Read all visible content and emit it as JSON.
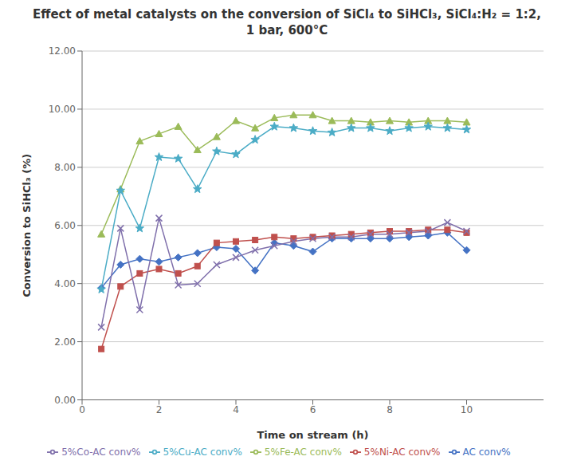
{
  "chart_data": {
    "type": "line",
    "title": "Effect of metal catalysts on the conversion of SiCl₄ to SiHCl₃, SiCl₄:H₂ = 1:2,\n1 bar, 600°C",
    "xlabel": "Time on stream (h)",
    "ylabel": "Conversion to SiHCl₃ (%)",
    "x": [
      0.5,
      1.0,
      1.5,
      2.0,
      2.5,
      3.0,
      3.5,
      4.0,
      4.5,
      5.0,
      5.5,
      6.0,
      6.5,
      7.0,
      7.5,
      8.0,
      8.5,
      9.0,
      9.5,
      10.0
    ],
    "xlim": [
      0,
      12
    ],
    "xticks": [
      0,
      2,
      4,
      6,
      8,
      10
    ],
    "ylim": [
      0,
      12
    ],
    "yticks": [
      {
        "value": 0,
        "label": "0.00"
      },
      {
        "value": 2,
        "label": "2.00"
      },
      {
        "value": 4,
        "label": "4.00"
      },
      {
        "value": 6,
        "label": "6.00"
      },
      {
        "value": 8,
        "label": "8.00"
      },
      {
        "value": 10,
        "label": "10.00"
      },
      {
        "value": 12,
        "label": "12.00"
      }
    ],
    "grid": true,
    "legend": "bottom",
    "series": [
      {
        "name": "AC conv%",
        "color": "#4472C4",
        "marker": "diamond",
        "values": [
          3.85,
          4.65,
          4.85,
          4.75,
          4.9,
          5.05,
          5.25,
          5.2,
          4.45,
          5.4,
          5.3,
          5.1,
          5.55,
          5.55,
          5.55,
          5.55,
          5.6,
          5.65,
          5.75,
          5.15
        ]
      },
      {
        "name": "5%Ni-AC conv%",
        "color": "#C0504D",
        "marker": "square",
        "values": [
          1.75,
          3.9,
          4.35,
          4.5,
          4.35,
          4.6,
          5.4,
          5.45,
          5.5,
          5.6,
          5.55,
          5.6,
          5.65,
          5.7,
          5.75,
          5.8,
          5.8,
          5.85,
          5.85,
          5.75
        ]
      },
      {
        "name": "5%Fe-AC conv%",
        "color": "#9BBB59",
        "marker": "triangle",
        "values": [
          5.7,
          7.25,
          8.9,
          9.15,
          9.4,
          8.6,
          9.05,
          9.6,
          9.35,
          9.7,
          9.8,
          9.8,
          9.6,
          9.6,
          9.55,
          9.6,
          9.55,
          9.6,
          9.6,
          9.55
        ]
      },
      {
        "name": "5%Co-AC conv%",
        "color": "#7F6FAB",
        "marker": "x",
        "values": [
          2.5,
          5.9,
          3.1,
          6.25,
          3.95,
          4.0,
          4.65,
          4.9,
          5.15,
          5.3,
          5.45,
          5.55,
          5.6,
          5.6,
          5.7,
          5.7,
          5.75,
          5.8,
          6.1,
          5.8
        ]
      },
      {
        "name": "5%Cu-AC conv%",
        "color": "#4BACC6",
        "marker": "star",
        "values": [
          3.8,
          7.2,
          5.9,
          8.35,
          8.3,
          7.25,
          8.55,
          8.45,
          8.95,
          9.4,
          9.35,
          9.25,
          9.2,
          9.35,
          9.35,
          9.25,
          9.35,
          9.4,
          9.35,
          9.3
        ]
      }
    ]
  }
}
